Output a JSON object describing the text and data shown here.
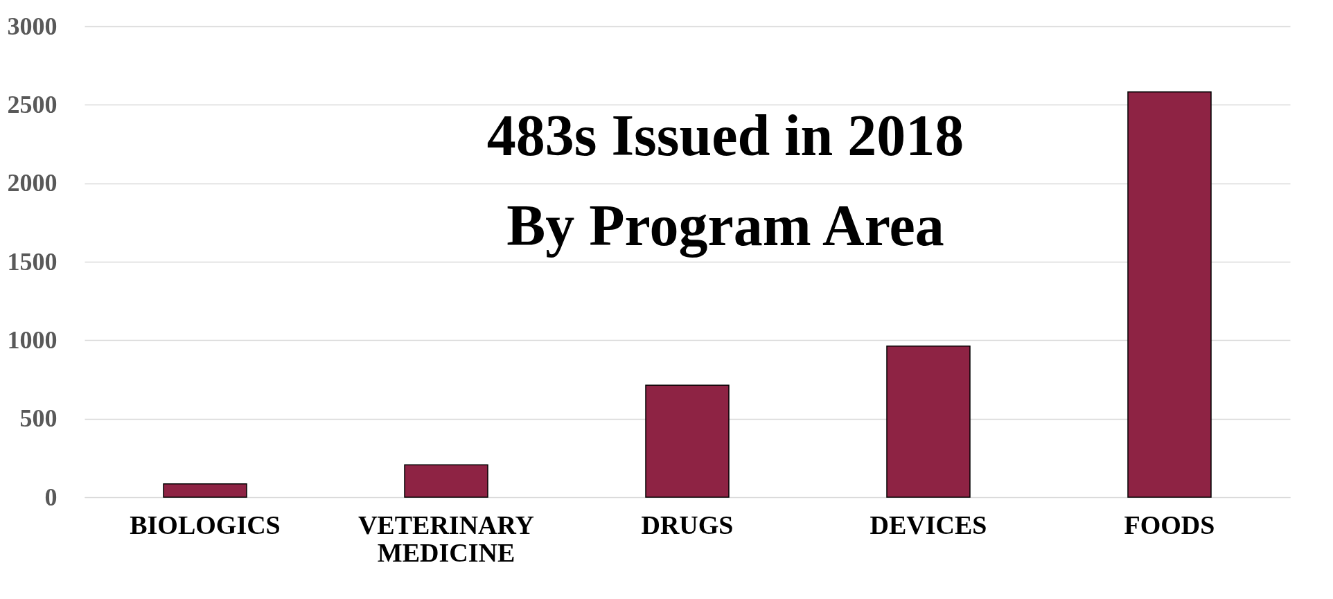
{
  "chart_data": {
    "type": "bar",
    "title": "483s Issued in 2018\nBy Program Area",
    "categories": [
      "BIOLOGICS",
      "VETERINARY MEDICINE",
      "DRUGS",
      "DEVICES",
      "FOODS"
    ],
    "values": [
      85,
      206,
      714,
      963,
      2582
    ],
    "color": "#8e2344",
    "ylim": [
      0,
      3000
    ],
    "yticks": [
      0,
      500,
      1000,
      1500,
      2000,
      2500,
      3000
    ],
    "grid": "y"
  }
}
